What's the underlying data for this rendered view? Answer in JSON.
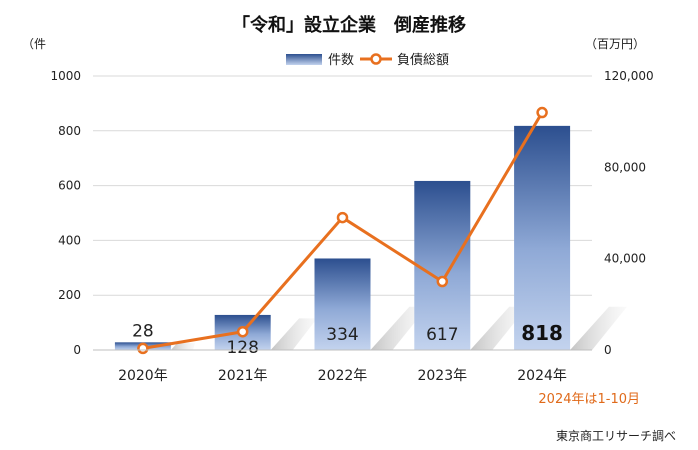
{
  "chart_data": {
    "type": "bar",
    "title": "「令和」設立企業　倒産推移",
    "categories": [
      "2020年",
      "2021年",
      "2022年",
      "2023年",
      "2024年"
    ],
    "series": [
      {
        "name": "件数",
        "type": "bar",
        "axis": "left",
        "values": [
          28,
          128,
          334,
          617,
          818
        ],
        "data_labels": [
          "28",
          "128",
          "334",
          "617",
          "818"
        ]
      },
      {
        "name": "負債総額",
        "type": "line",
        "axis": "right",
        "values": [
          700,
          8000,
          58000,
          30000,
          104000
        ]
      }
    ],
    "y_left": {
      "unit": "（件",
      "ylim": [
        0,
        1000
      ],
      "ticks": [
        "0",
        "200",
        "400",
        "600",
        "800",
        "1000"
      ]
    },
    "y_right": {
      "unit": "（百万円）",
      "ylim": [
        0,
        120000
      ],
      "ticks": [
        "0",
        "40,000",
        "80,000",
        "120,000"
      ]
    },
    "grid": true,
    "legend": "top-center",
    "colors": {
      "bar_top": "#2c4f8f",
      "bar_bottom": "#c3d3ee",
      "line": "#e8701f",
      "grid": "#d9d9d9"
    },
    "annotation": "2024年は1-10月",
    "source": "東京商工リサーチ調べ"
  }
}
